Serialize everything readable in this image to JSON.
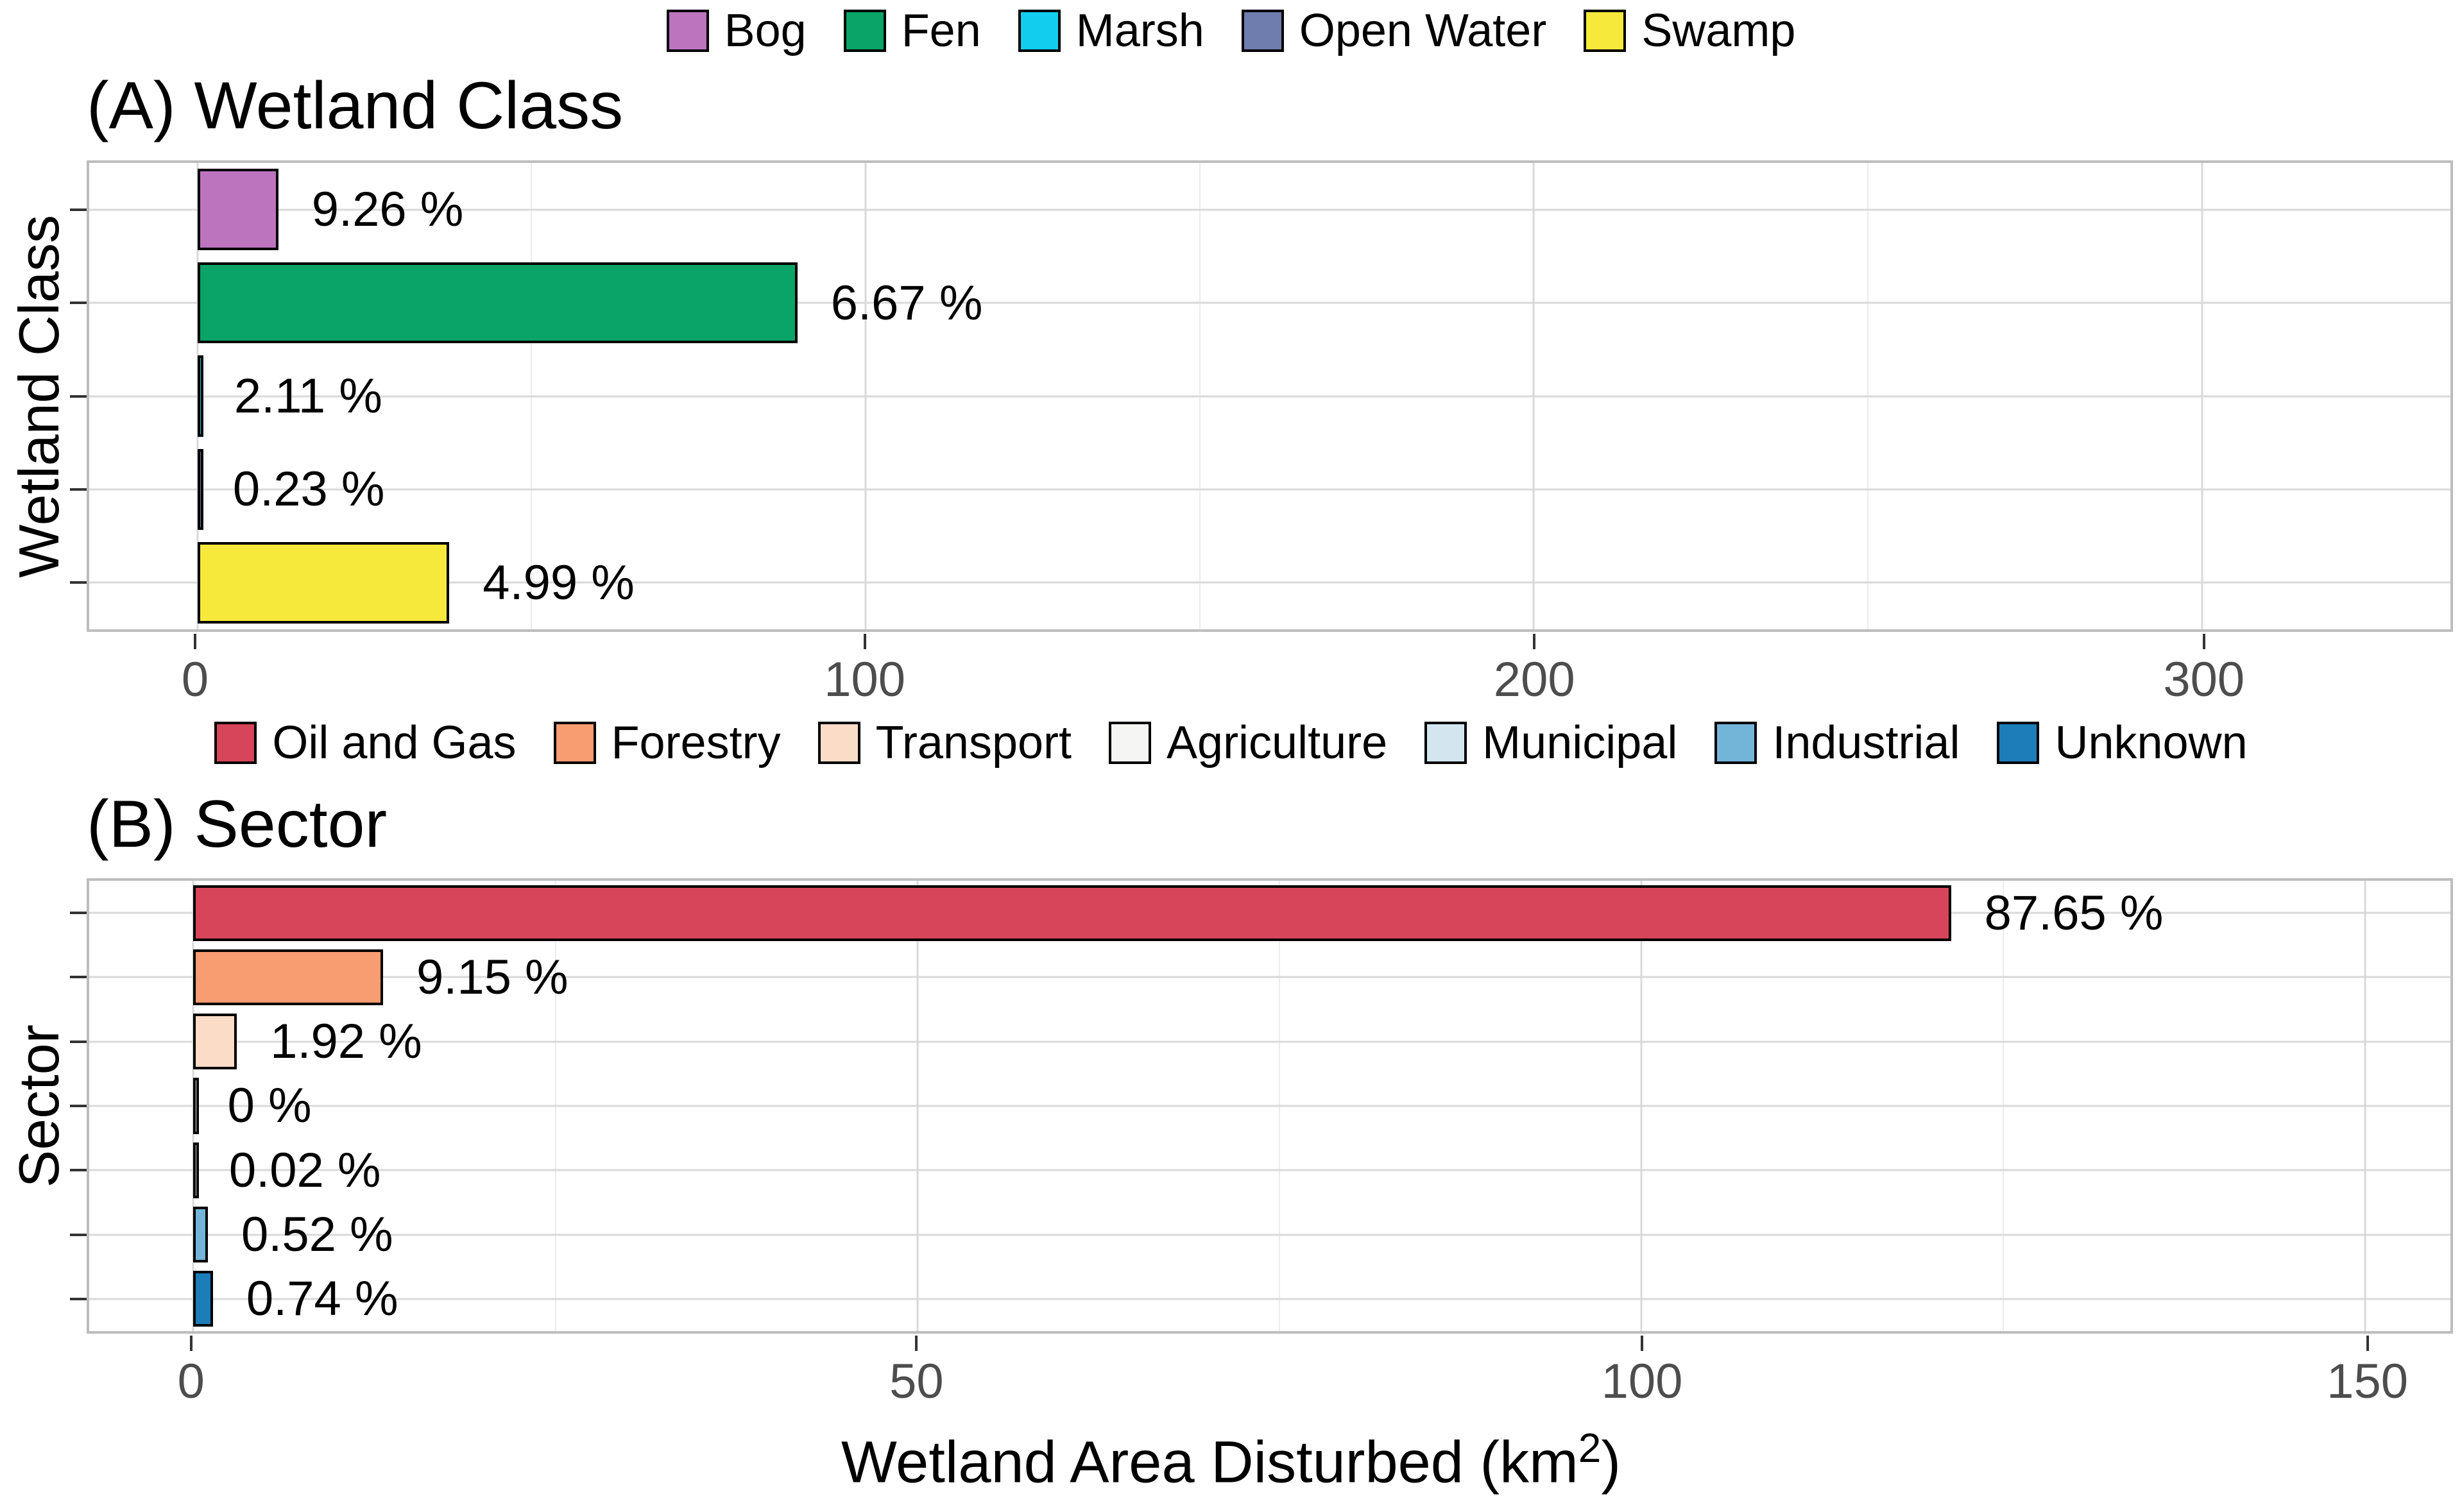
{
  "figure": {
    "xlabel": {
      "prefix": "Wetland Area Disturbed (km",
      "sup": "2",
      "suffix": ")"
    }
  },
  "chart_data": [
    {
      "type": "bar",
      "orientation": "horizontal",
      "panel": "A",
      "title": "(A) Wetland Class",
      "ylabel": "Wetland Class",
      "xlabel": "Wetland Area Disturbed (km2)",
      "legend_position": "top",
      "categories": [
        "Bog",
        "Fen",
        "Marsh",
        "Open Water",
        "Swamp"
      ],
      "values_km2": [
        12.1,
        89.8,
        0.5,
        0.3,
        37.7
      ],
      "bar_labels": [
        "9.26 %",
        "6.67 %",
        "2.11 %",
        "0.23 %",
        "4.99 %"
      ],
      "colors": [
        "#bb74bd",
        "#0aa368",
        "#12cdee",
        "#6e7cae",
        "#f6e93b"
      ],
      "xticks": [
        0,
        100,
        200,
        300
      ],
      "minor_xticks": [
        50,
        150,
        250
      ],
      "xlim_render": [
        -16.2,
        337.2
      ],
      "grid": true
    },
    {
      "type": "bar",
      "orientation": "horizontal",
      "panel": "B",
      "title": "(B) Sector",
      "ylabel": "Sector",
      "xlabel": "Wetland Area Disturbed (km2)",
      "legend_position": "top",
      "categories": [
        "Oil and Gas",
        "Forestry",
        "Transport",
        "Agriculture",
        "Municipal",
        "Industrial",
        "Unknown"
      ],
      "values_km2": [
        121.4,
        13.1,
        3.0,
        0.05,
        0.15,
        1.0,
        1.35
      ],
      "bar_labels": [
        "87.65 %",
        "9.15 %",
        "1.92 %",
        "0 %",
        "0.02 %",
        "0.52 %",
        "0.74 %"
      ],
      "colors": [
        "#d6455a",
        "#f89c72",
        "#fbdcc7",
        "#f5f5f3",
        "#d3e6f0",
        "#73b5d8",
        "#1d7db9"
      ],
      "xticks": [
        0,
        50,
        100,
        150
      ],
      "minor_xticks": [
        25,
        75,
        125
      ],
      "xlim_render": [
        -7.2,
        155.9
      ],
      "grid": true
    }
  ]
}
